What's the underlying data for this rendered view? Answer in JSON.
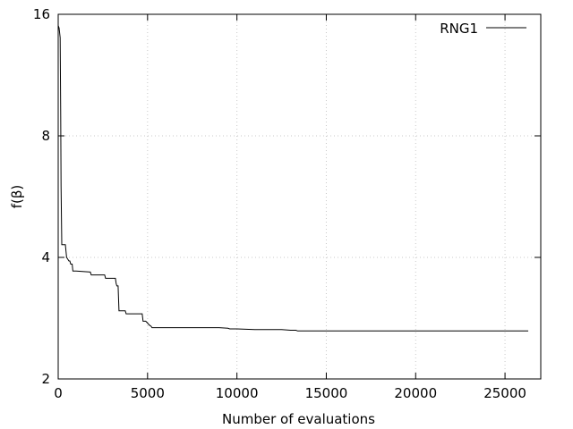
{
  "chart_data": {
    "type": "line",
    "title": "",
    "xlabel": "Number of evaluations",
    "ylabel": "f(β)",
    "xlim": [
      0,
      27000
    ],
    "ylim": [
      2,
      16
    ],
    "y_scale": "log2",
    "grid": true,
    "legend_position": "top-right",
    "x_ticks": [
      0,
      5000,
      10000,
      15000,
      20000,
      25000
    ],
    "x_tick_labels": [
      "0",
      "5000",
      "10000",
      "15000",
      "20000",
      "25000"
    ],
    "y_ticks": [
      2,
      4,
      8,
      16
    ],
    "y_tick_labels": [
      "2",
      "4",
      "8",
      "16"
    ],
    "series": [
      {
        "name": "RNG1",
        "color": "#000000",
        "x": [
          0,
          50,
          110,
          140,
          160,
          200,
          300,
          400,
          470,
          600,
          650,
          700,
          780,
          820,
          850,
          1000,
          1800,
          1850,
          2600,
          2650,
          3200,
          3240,
          3280,
          3350,
          3400,
          3750,
          3800,
          3900,
          4700,
          4750,
          4900,
          5000,
          5100,
          5200,
          5250,
          5300,
          6000,
          9000,
          9500,
          9600,
          10000,
          11000,
          12500,
          13000,
          13300,
          13400,
          15000,
          20000,
          26300
        ],
        "y": [
          15.0,
          14.8,
          14.0,
          9.0,
          6.0,
          4.3,
          4.3,
          4.3,
          4.0,
          3.92,
          3.92,
          3.85,
          3.85,
          3.7,
          3.7,
          3.7,
          3.68,
          3.62,
          3.62,
          3.55,
          3.55,
          3.45,
          3.4,
          3.4,
          2.95,
          2.95,
          2.9,
          2.9,
          2.9,
          2.78,
          2.78,
          2.75,
          2.72,
          2.7,
          2.68,
          2.68,
          2.68,
          2.68,
          2.67,
          2.66,
          2.66,
          2.65,
          2.65,
          2.64,
          2.64,
          2.63,
          2.63,
          2.63,
          2.63
        ]
      }
    ]
  }
}
